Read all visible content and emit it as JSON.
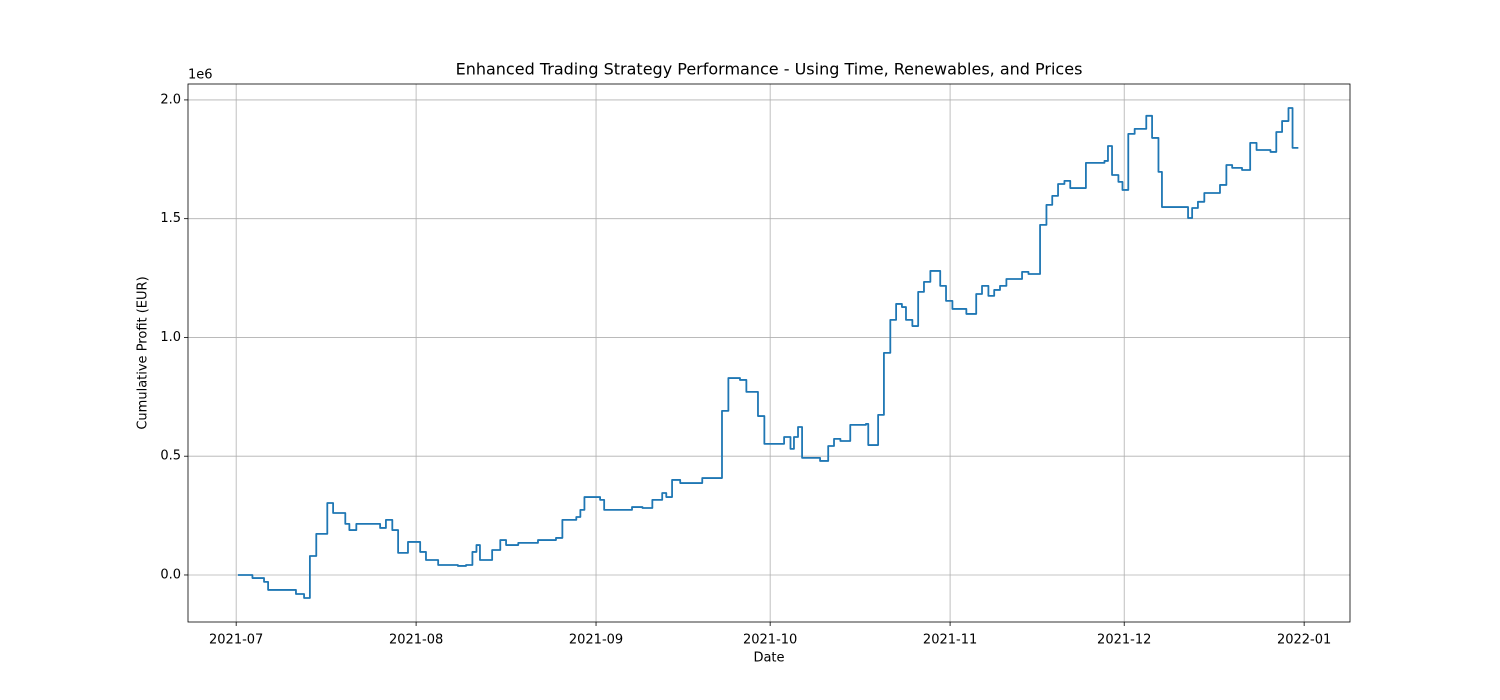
{
  "chart_data": {
    "type": "line",
    "title": "Enhanced Trading Strategy Performance - Using Time, Renewables, and Prices",
    "x_label": "Date",
    "y_label": "Cumulative Profit (EUR)",
    "y_offset_label": "1e6",
    "grid": true,
    "xlim": [
      -8.3,
      191.9
    ],
    "ylim": [
      -198000,
      2067000
    ],
    "xticks": [
      {
        "value": 0,
        "label": "2021-07"
      },
      {
        "value": 31,
        "label": "2021-08"
      },
      {
        "value": 62,
        "label": "2021-09"
      },
      {
        "value": 92,
        "label": "2021-10"
      },
      {
        "value": 123,
        "label": "2021-11"
      },
      {
        "value": 153,
        "label": "2021-12"
      },
      {
        "value": 184,
        "label": "2022-01"
      }
    ],
    "yticks": [
      {
        "value": 0,
        "label": "0.0"
      },
      {
        "value": 500000,
        "label": "0.5"
      },
      {
        "value": 1000000,
        "label": "1.0"
      },
      {
        "value": 1500000,
        "label": "1.5"
      },
      {
        "value": 2000000,
        "label": "2.0"
      }
    ],
    "series": [
      {
        "color": "#1f77b4",
        "x": [
          0.3,
          2.8,
          2.8,
          4.8,
          4.8,
          5.5,
          5.5,
          10.3,
          10.3,
          11.7,
          11.7,
          12.7,
          12.7,
          13.8,
          13.8,
          15.7,
          15.7,
          16.7,
          16.7,
          18.8,
          18.8,
          19.5,
          19.5,
          20.7,
          20.7,
          24.8,
          24.8,
          25.8,
          25.8,
          26.9,
          26.9,
          27.9,
          27.9,
          29.6,
          29.6,
          31.7,
          31.7,
          32.7,
          32.7,
          34.8,
          34.8,
          38.2,
          38.2,
          39.6,
          39.6,
          40.7,
          40.7,
          41.4,
          41.4,
          42.0,
          42.0,
          44.1,
          44.1,
          45.5,
          45.5,
          46.5,
          46.5,
          48.6,
          48.6,
          52.0,
          52.0,
          55.1,
          55.1,
          56.2,
          56.2,
          58.6,
          58.6,
          59.3,
          59.3,
          60.0,
          60.0,
          62.7,
          62.7,
          63.4,
          63.4,
          68.2,
          68.2,
          70.0,
          70.0,
          71.7,
          71.7,
          73.4,
          73.4,
          74.1,
          74.1,
          75.1,
          75.1,
          76.5,
          76.5,
          80.3,
          80.3,
          83.7,
          83.7,
          84.8,
          84.8,
          86.8,
          86.8,
          87.9,
          87.9,
          89.9,
          89.9,
          91.0,
          91.0,
          94.4,
          94.4,
          95.5,
          95.5,
          96.1,
          96.1,
          96.8,
          96.8,
          97.5,
          97.5,
          100.6,
          100.6,
          102.0,
          102.0,
          103.0,
          103.0,
          104.1,
          104.1,
          105.8,
          105.8,
          108.5,
          108.5,
          108.9,
          108.9,
          110.6,
          110.6,
          111.6,
          111.6,
          112.7,
          112.7,
          113.7,
          113.7,
          114.7,
          114.7,
          115.4,
          115.4,
          116.5,
          116.5,
          117.5,
          117.5,
          118.5,
          118.5,
          119.6,
          119.6,
          121.3,
          121.3,
          122.3,
          122.3,
          123.4,
          123.4,
          125.8,
          125.8,
          127.5,
          127.5,
          128.5,
          128.5,
          129.6,
          129.6,
          130.6,
          130.6,
          131.6,
          131.6,
          132.7,
          132.7,
          135.4,
          135.4,
          136.5,
          136.5,
          138.5,
          138.5,
          139.6,
          139.6,
          140.6,
          140.6,
          141.6,
          141.6,
          142.7,
          142.7,
          143.7,
          143.7,
          146.4,
          146.4,
          149.6,
          149.6,
          150.2,
          150.2,
          150.9,
          150.9,
          152.0,
          152.0,
          152.7,
          152.7,
          153.7,
          153.7,
          154.8,
          154.8,
          156.8,
          156.8,
          157.8,
          157.8,
          158.9,
          158.9,
          159.5,
          159.5,
          164.0,
          164.0,
          164.7,
          164.7,
          165.7,
          165.7,
          166.8,
          166.8,
          169.5,
          169.5,
          170.6,
          170.6,
          171.6,
          171.6,
          173.3,
          173.3,
          174.7,
          174.7,
          175.8,
          175.8,
          178.2,
          178.2,
          179.2,
          179.2,
          180.2,
          180.2,
          181.3,
          181.3,
          182.0,
          182.0,
          183.0
        ],
        "values": [
          0,
          0,
          -13000,
          -13000,
          -29000,
          -29000,
          -63000,
          -63000,
          -80000,
          -80000,
          -97000,
          -97000,
          80000,
          80000,
          173000,
          173000,
          303000,
          303000,
          261000,
          261000,
          215000,
          215000,
          189000,
          189000,
          215000,
          215000,
          198000,
          198000,
          232000,
          232000,
          189000,
          189000,
          93000,
          93000,
          139000,
          139000,
          97000,
          97000,
          63000,
          63000,
          42000,
          42000,
          38000,
          38000,
          42000,
          42000,
          97000,
          97000,
          126000,
          126000,
          63000,
          63000,
          105000,
          105000,
          147000,
          147000,
          126000,
          126000,
          135000,
          135000,
          147000,
          147000,
          156000,
          156000,
          232000,
          232000,
          244000,
          244000,
          274000,
          274000,
          328000,
          328000,
          316000,
          316000,
          274000,
          274000,
          286000,
          286000,
          282000,
          282000,
          316000,
          316000,
          345000,
          345000,
          328000,
          328000,
          400000,
          400000,
          387000,
          387000,
          408000,
          408000,
          691000,
          691000,
          829000,
          829000,
          821000,
          821000,
          771000,
          771000,
          669000,
          669000,
          552000,
          552000,
          581000,
          581000,
          531000,
          531000,
          581000,
          581000,
          623000,
          623000,
          493000,
          493000,
          480000,
          480000,
          543000,
          543000,
          573000,
          573000,
          564000,
          564000,
          632000,
          632000,
          636000,
          636000,
          547000,
          547000,
          674000,
          674000,
          935000,
          935000,
          1074000,
          1074000,
          1141000,
          1141000,
          1128000,
          1128000,
          1074000,
          1074000,
          1048000,
          1048000,
          1192000,
          1192000,
          1234000,
          1234000,
          1280000,
          1280000,
          1217000,
          1217000,
          1154000,
          1154000,
          1120000,
          1120000,
          1099000,
          1099000,
          1183000,
          1183000,
          1217000,
          1217000,
          1175000,
          1175000,
          1200000,
          1200000,
          1217000,
          1217000,
          1246000,
          1246000,
          1276000,
          1276000,
          1267000,
          1267000,
          1474000,
          1474000,
          1558000,
          1558000,
          1596000,
          1596000,
          1646000,
          1646000,
          1659000,
          1659000,
          1629000,
          1629000,
          1735000,
          1735000,
          1743000,
          1743000,
          1806000,
          1806000,
          1684000,
          1684000,
          1655000,
          1655000,
          1621000,
          1621000,
          1857000,
          1857000,
          1878000,
          1878000,
          1933000,
          1933000,
          1840000,
          1840000,
          1697000,
          1697000,
          1549000,
          1549000,
          1503000,
          1503000,
          1545000,
          1545000,
          1571000,
          1571000,
          1608000,
          1608000,
          1642000,
          1642000,
          1726000,
          1726000,
          1714000,
          1714000,
          1705000,
          1705000,
          1819000,
          1819000,
          1789000,
          1789000,
          1781000,
          1781000,
          1865000,
          1865000,
          1911000,
          1911000,
          1966000,
          1966000,
          1798000,
          1798000
        ]
      }
    ]
  }
}
